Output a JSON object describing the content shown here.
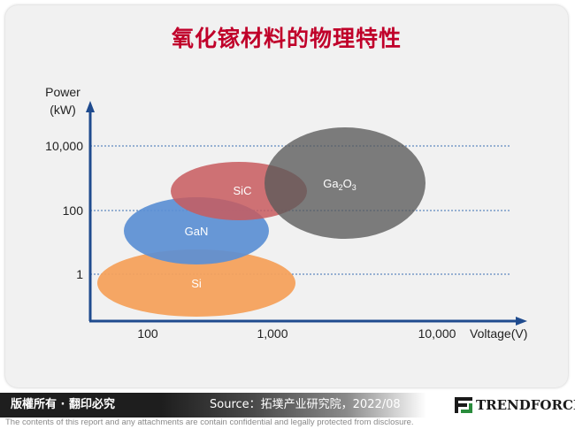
{
  "title": "氧化镓材料的物理特性",
  "chart_data": {
    "type": "bubble",
    "title": "氧化镓材料的物理特性",
    "xlabel": "Voltage(V)",
    "ylabel_line1": "Power",
    "ylabel_line2": "(kW)",
    "x_ticks": [
      "100",
      "1,000",
      "10,000"
    ],
    "y_ticks": [
      "10,000",
      "100",
      "1"
    ],
    "grid": "horizontal dotted at y ticks",
    "series": [
      {
        "name": "Si",
        "color": "#f4a15c"
      },
      {
        "name": "GaN",
        "color": "#5b8fd4"
      },
      {
        "name": "SiC",
        "color": "#c85a5e"
      },
      {
        "name": "Ga2O3",
        "color": "#707070"
      }
    ]
  },
  "footer": {
    "copyright": "版權所有 · 翻印必究",
    "source": "Source：拓墣产业研究院，2022/08",
    "logo_text": "TRENDFORCE",
    "logo_icon": "trendforce-logo-icon"
  },
  "disclaimer": "The contents of this report and any attachments are contain confidential and legally protected from disclosure."
}
